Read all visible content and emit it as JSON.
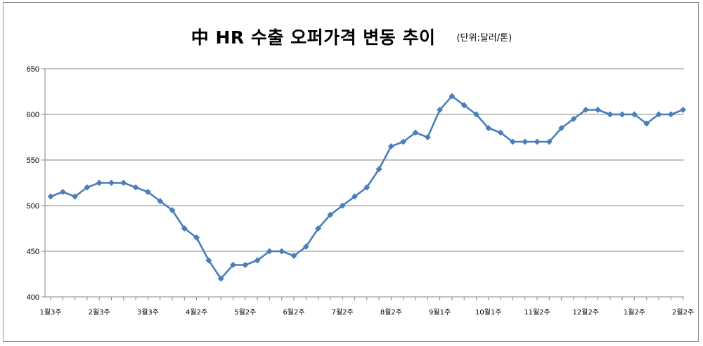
{
  "chart_data": {
    "type": "line",
    "title": "中 HR 수출 오퍼가격 변동 추이",
    "unit_note": "(단위:달러/톤)",
    "xlabel": "",
    "ylabel": "",
    "ylim": [
      400,
      650
    ],
    "y_ticks": [
      400,
      450,
      500,
      550,
      600,
      650
    ],
    "grid": true,
    "legend": "none",
    "series_color": "#4a7ebb",
    "x_tick_labels": [
      {
        "index": 0,
        "label": "1월3주"
      },
      {
        "index": 4,
        "label": "2월3주"
      },
      {
        "index": 8,
        "label": "3월3주"
      },
      {
        "index": 12,
        "label": "4월2주"
      },
      {
        "index": 16,
        "label": "5월2주"
      },
      {
        "index": 20,
        "label": "6월2주"
      },
      {
        "index": 24,
        "label": "7월2주"
      },
      {
        "index": 28,
        "label": "8월2주"
      },
      {
        "index": 32,
        "label": "9월1주"
      },
      {
        "index": 36,
        "label": "10월1주"
      },
      {
        "index": 40,
        "label": "11월2주"
      },
      {
        "index": 44,
        "label": "12월2주"
      },
      {
        "index": 48,
        "label": "1월2주"
      },
      {
        "index": 52,
        "label": "2월2주"
      }
    ],
    "values": [
      510,
      515,
      510,
      520,
      525,
      525,
      525,
      520,
      515,
      505,
      495,
      475,
      465,
      440,
      420,
      435,
      435,
      440,
      450,
      450,
      445,
      455,
      475,
      490,
      500,
      510,
      520,
      540,
      565,
      570,
      580,
      575,
      605,
      620,
      610,
      600,
      585,
      580,
      570,
      570,
      570,
      570,
      585,
      595,
      605,
      605,
      600,
      600,
      600,
      590,
      600,
      600,
      605
    ]
  }
}
